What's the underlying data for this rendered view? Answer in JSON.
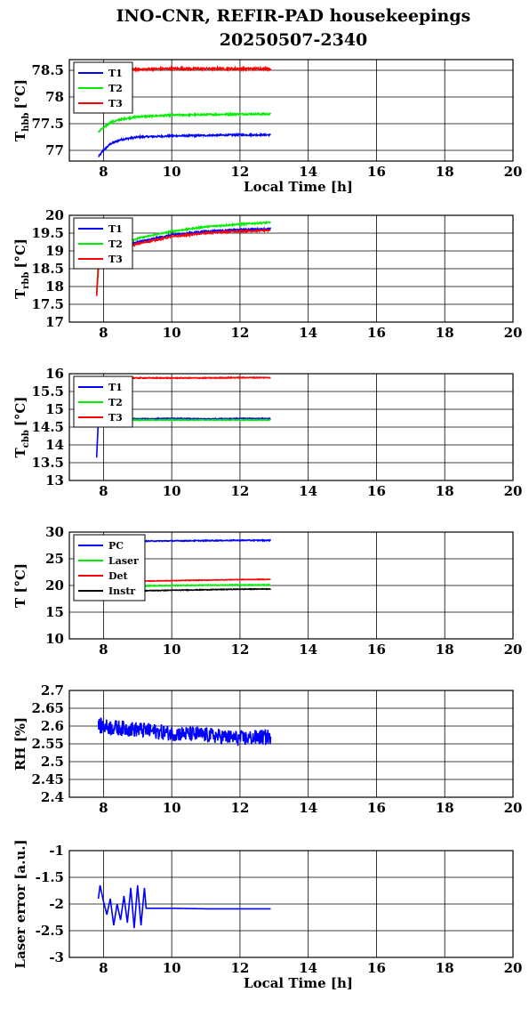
{
  "figure": {
    "title": "INO-CNR, REFIR-PAD housekeepings",
    "subtitle": "20250507-2340"
  },
  "chart_data": [
    {
      "type": "line",
      "ylabel": "T",
      "ylabel_sub": "hbb",
      "ylabel_unit": "[°C]",
      "xlabel": "Local Time [h]",
      "xlim": [
        7,
        20
      ],
      "xticks": [
        "8",
        "10",
        "12",
        "14",
        "16",
        "18",
        "20"
      ],
      "ylim": [
        76.8,
        78.7
      ],
      "yticks": [
        "77",
        "77.5",
        "78",
        "78.5"
      ],
      "grid": true,
      "legend_position": "top-left",
      "series": [
        {
          "name": "T1",
          "color": "#0000ff",
          "noise": 0.015,
          "points": [
            [
              7.85,
              76.88
            ],
            [
              8.0,
              77.0
            ],
            [
              8.2,
              77.12
            ],
            [
              8.5,
              77.2
            ],
            [
              9.0,
              77.25
            ],
            [
              10,
              77.27
            ],
            [
              11,
              77.28
            ],
            [
              12,
              77.29
            ],
            [
              12.9,
              77.29
            ]
          ]
        },
        {
          "name": "T2",
          "color": "#00ee00",
          "noise": 0.015,
          "points": [
            [
              7.85,
              77.35
            ],
            [
              8.0,
              77.42
            ],
            [
              8.2,
              77.52
            ],
            [
              8.5,
              77.58
            ],
            [
              9.0,
              77.63
            ],
            [
              10,
              77.66
            ],
            [
              11,
              77.67
            ],
            [
              12,
              77.68
            ],
            [
              12.9,
              77.68
            ]
          ]
        },
        {
          "name": "T3",
          "color": "#ff0000",
          "noise": 0.02,
          "points": [
            [
              7.85,
              78.6
            ],
            [
              8.0,
              78.56
            ],
            [
              8.3,
              78.52
            ],
            [
              9,
              78.52
            ],
            [
              10,
              78.53
            ],
            [
              11,
              78.53
            ],
            [
              12,
              78.53
            ],
            [
              12.9,
              78.53
            ]
          ]
        }
      ]
    },
    {
      "type": "line",
      "ylabel": "T",
      "ylabel_sub": "rbb",
      "ylabel_unit": "[°C]",
      "xlabel": "",
      "xlim": [
        7,
        20
      ],
      "xticks": [
        "8",
        "10",
        "12",
        "14",
        "16",
        "18",
        "20"
      ],
      "ylim": [
        17,
        20
      ],
      "yticks": [
        "17",
        "17.5",
        "18",
        "18.5",
        "19",
        "19.5",
        "20"
      ],
      "grid": true,
      "legend_position": "top-left",
      "series": [
        {
          "name": "T1",
          "color": "#0000ff",
          "noise": 0.02,
          "points": [
            [
              7.8,
              17.8
            ],
            [
              7.85,
              18.6
            ],
            [
              8.0,
              18.95
            ],
            [
              8.5,
              19.1
            ],
            [
              9,
              19.25
            ],
            [
              10,
              19.45
            ],
            [
              11,
              19.55
            ],
            [
              12,
              19.6
            ],
            [
              12.9,
              19.62
            ]
          ]
        },
        {
          "name": "T2",
          "color": "#00ee00",
          "noise": 0.02,
          "points": [
            [
              7.8,
              17.8
            ],
            [
              7.85,
              18.7
            ],
            [
              8.0,
              19.05
            ],
            [
              8.5,
              19.2
            ],
            [
              9,
              19.35
            ],
            [
              10,
              19.55
            ],
            [
              11,
              19.68
            ],
            [
              12,
              19.75
            ],
            [
              12.9,
              19.8
            ]
          ]
        },
        {
          "name": "T3",
          "color": "#ff0000",
          "noise": 0.02,
          "points": [
            [
              7.8,
              17.75
            ],
            [
              7.85,
              18.5
            ],
            [
              8.0,
              18.9
            ],
            [
              8.5,
              19.05
            ],
            [
              9,
              19.2
            ],
            [
              10,
              19.4
            ],
            [
              11,
              19.5
            ],
            [
              12,
              19.55
            ],
            [
              12.9,
              19.58
            ]
          ]
        }
      ]
    },
    {
      "type": "line",
      "ylabel": "T",
      "ylabel_sub": "cbb",
      "ylabel_unit": "[°C]",
      "xlabel": "",
      "xlim": [
        7,
        20
      ],
      "xticks": [
        "8",
        "10",
        "12",
        "14",
        "16",
        "18",
        "20"
      ],
      "ylim": [
        13,
        16
      ],
      "yticks": [
        "13",
        "13.5",
        "14",
        "14.5",
        "15",
        "15.5",
        "16"
      ],
      "grid": true,
      "legend_position": "top-left",
      "series": [
        {
          "name": "T1",
          "color": "#0000ff",
          "noise": 0.012,
          "points": [
            [
              7.8,
              13.65
            ],
            [
              7.85,
              14.7
            ],
            [
              8.0,
              14.75
            ],
            [
              9,
              14.73
            ],
            [
              10,
              14.74
            ],
            [
              11,
              14.73
            ],
            [
              12,
              14.74
            ],
            [
              12.9,
              14.74
            ]
          ]
        },
        {
          "name": "T2",
          "color": "#00ee00",
          "noise": 0.012,
          "points": [
            [
              7.8,
              14.5
            ],
            [
              7.85,
              14.72
            ],
            [
              8.0,
              14.7
            ],
            [
              9,
              14.7
            ],
            [
              10,
              14.7
            ],
            [
              11,
              14.7
            ],
            [
              12,
              14.7
            ],
            [
              12.9,
              14.7
            ]
          ]
        },
        {
          "name": "T3",
          "color": "#ff0000",
          "noise": 0.012,
          "points": [
            [
              7.8,
              15.85
            ],
            [
              8.0,
              15.87
            ],
            [
              9,
              15.88
            ],
            [
              10,
              15.88
            ],
            [
              11,
              15.88
            ],
            [
              12,
              15.89
            ],
            [
              12.9,
              15.89
            ]
          ]
        }
      ]
    },
    {
      "type": "line",
      "ylabel": "T [°C]",
      "xlabel": "",
      "xlim": [
        7,
        20
      ],
      "xticks": [
        "8",
        "10",
        "12",
        "14",
        "16",
        "18",
        "20"
      ],
      "ylim": [
        10,
        30
      ],
      "yticks": [
        "10",
        "15",
        "20",
        "25",
        "30"
      ],
      "grid": true,
      "legend_position": "top-left",
      "series": [
        {
          "name": "PC",
          "color": "#0000ff",
          "noise": 0.08,
          "points": [
            [
              7.85,
              28.0
            ],
            [
              8.5,
              28.2
            ],
            [
              9,
              28.3
            ],
            [
              10,
              28.35
            ],
            [
              11,
              28.4
            ],
            [
              12,
              28.45
            ],
            [
              12.9,
              28.45
            ]
          ]
        },
        {
          "name": "Laser",
          "color": "#00ee00",
          "noise": 0.08,
          "points": [
            [
              7.85,
              19.7
            ],
            [
              8.5,
              19.8
            ],
            [
              9,
              19.9
            ],
            [
              10,
              20.0
            ],
            [
              11,
              20.05
            ],
            [
              12,
              20.1
            ],
            [
              12.9,
              20.1
            ]
          ]
        },
        {
          "name": "Det",
          "color": "#ff0000",
          "noise": 0.05,
          "points": [
            [
              7.85,
              20.5
            ],
            [
              8.5,
              20.6
            ],
            [
              9,
              20.8
            ],
            [
              10,
              20.9
            ],
            [
              11,
              21.0
            ],
            [
              12,
              21.1
            ],
            [
              12.9,
              21.15
            ]
          ]
        },
        {
          "name": "Instr",
          "color": "#000000",
          "noise": 0.06,
          "points": [
            [
              7.85,
              18.7
            ],
            [
              8.5,
              18.9
            ],
            [
              9,
              19.0
            ],
            [
              10,
              19.1
            ],
            [
              11,
              19.2
            ],
            [
              12,
              19.3
            ],
            [
              12.9,
              19.35
            ]
          ]
        }
      ]
    },
    {
      "type": "line",
      "ylabel": "RH [%]",
      "xlabel": "",
      "xlim": [
        7,
        20
      ],
      "xticks": [
        "8",
        "10",
        "12",
        "14",
        "16",
        "18",
        "20"
      ],
      "ylim": [
        2.4,
        2.7
      ],
      "yticks": [
        "2.4",
        "2.45",
        "2.5",
        "2.55",
        "2.6",
        "2.65",
        "2.7"
      ],
      "grid": true,
      "legend_position": "",
      "series": [
        {
          "name": "",
          "color": "#0000ff",
          "noise": 0.022,
          "points": [
            [
              7.85,
              2.6
            ],
            [
              9,
              2.59
            ],
            [
              10,
              2.58
            ],
            [
              11,
              2.575
            ],
            [
              12,
              2.565
            ],
            [
              12.9,
              2.57
            ]
          ]
        }
      ]
    },
    {
      "type": "line",
      "ylabel": "Laser error [a.u.]",
      "xlabel": "Local Time [h]",
      "xlim": [
        7,
        20
      ],
      "xticks": [
        "8",
        "10",
        "12",
        "14",
        "16",
        "18",
        "20"
      ],
      "ylim": [
        -3,
        -1
      ],
      "yticks": [
        "-3",
        "-2.5",
        "-2",
        "-1.5",
        "-1"
      ],
      "grid": true,
      "legend_position": "",
      "series": [
        {
          "name": "",
          "color": "#0000ff",
          "noise": 0.0,
          "points": [
            [
              7.85,
              -1.9
            ],
            [
              7.9,
              -1.65
            ],
            [
              8.0,
              -1.95
            ],
            [
              8.1,
              -2.2
            ],
            [
              8.2,
              -1.9
            ],
            [
              8.3,
              -2.4
            ],
            [
              8.4,
              -2.0
            ],
            [
              8.5,
              -2.3
            ],
            [
              8.6,
              -1.85
            ],
            [
              8.7,
              -2.35
            ],
            [
              8.8,
              -1.7
            ],
            [
              8.9,
              -2.45
            ],
            [
              9.0,
              -1.65
            ],
            [
              9.1,
              -2.4
            ],
            [
              9.2,
              -1.7
            ],
            [
              9.25,
              -2.08
            ],
            [
              10,
              -2.08
            ],
            [
              11,
              -2.09
            ],
            [
              12,
              -2.09
            ],
            [
              12.9,
              -2.09
            ]
          ]
        }
      ]
    }
  ]
}
